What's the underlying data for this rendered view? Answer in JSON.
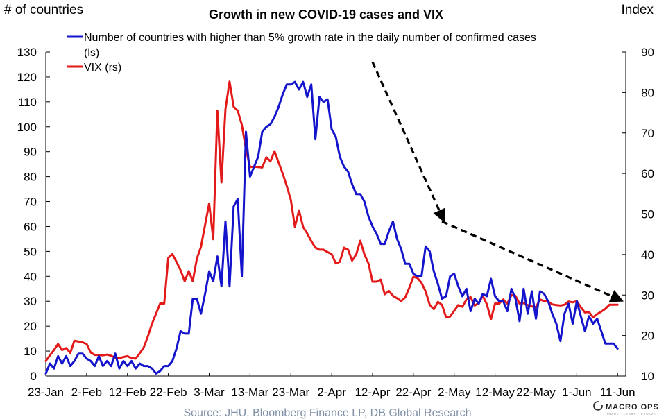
{
  "chart_data": {
    "type": "line",
    "title": "Growth in new COVID-19 cases and VIX",
    "ylabel_left": "# of countries",
    "ylabel_right": "Index",
    "ylim_left": [
      0,
      130
    ],
    "ylim_right": [
      10,
      90
    ],
    "yticks_left": [
      0,
      10,
      20,
      30,
      40,
      50,
      60,
      70,
      80,
      90,
      100,
      110,
      120,
      130
    ],
    "yticks_right": [
      10,
      20,
      30,
      40,
      50,
      60,
      70,
      80,
      90
    ],
    "x_range_days": [
      0,
      142
    ],
    "xtick_days": [
      0,
      10,
      20,
      30,
      40,
      50,
      60,
      70,
      80,
      90,
      100,
      110,
      120,
      130,
      140
    ],
    "xtick_labels": [
      "23-Jan",
      "2-Feb",
      "12-Feb",
      "22-Feb",
      "3-Mar",
      "13-Mar",
      "23-Mar",
      "2-Apr",
      "12-Apr",
      "22-Apr",
      "2-May",
      "12-May",
      "22-May",
      "1-Jun",
      "11-Jun"
    ],
    "legend": {
      "entry1_line1": "Number of countries with higher than 5% growth rate in the daily number of confirmed cases",
      "entry1_line2": "(ls)",
      "entry2": "VIX (rs)"
    },
    "series": [
      {
        "name": "Number of countries with higher than 5% growth rate in the daily number of confirmed cases (ls)",
        "axis": "left",
        "color": "#1414cc",
        "points": [
          [
            0,
            1
          ],
          [
            1,
            5
          ],
          [
            2,
            3
          ],
          [
            3,
            8
          ],
          [
            4,
            5
          ],
          [
            5,
            8
          ],
          [
            6,
            4
          ],
          [
            7,
            6
          ],
          [
            8,
            9
          ],
          [
            9,
            9
          ],
          [
            10,
            7
          ],
          [
            11,
            6
          ],
          [
            12,
            4
          ],
          [
            13,
            8
          ],
          [
            14,
            4
          ],
          [
            15,
            6
          ],
          [
            16,
            4
          ],
          [
            17,
            9
          ],
          [
            18,
            3
          ],
          [
            19,
            6
          ],
          [
            20,
            4
          ],
          [
            21,
            6
          ],
          [
            22,
            3
          ],
          [
            23,
            5
          ],
          [
            24,
            4
          ],
          [
            25,
            4
          ],
          [
            26,
            3
          ],
          [
            27,
            1
          ],
          [
            28,
            2
          ],
          [
            29,
            4
          ],
          [
            30,
            4
          ],
          [
            31,
            6
          ],
          [
            32,
            11
          ],
          [
            33,
            18
          ],
          [
            34,
            17
          ],
          [
            35,
            17
          ],
          [
            36,
            31
          ],
          [
            37,
            31
          ],
          [
            38,
            25
          ],
          [
            39,
            33
          ],
          [
            40,
            42
          ],
          [
            41,
            38
          ],
          [
            42,
            48
          ],
          [
            43,
            36
          ],
          [
            44,
            62
          ],
          [
            45,
            36
          ],
          [
            46,
            68
          ],
          [
            47,
            71
          ],
          [
            48,
            40
          ],
          [
            49,
            98
          ],
          [
            50,
            80
          ],
          [
            51,
            84
          ],
          [
            52,
            88
          ],
          [
            53,
            98
          ],
          [
            54,
            100
          ],
          [
            55,
            101
          ],
          [
            56,
            104
          ],
          [
            57,
            108
          ],
          [
            58,
            113
          ],
          [
            59,
            117
          ],
          [
            60,
            117
          ],
          [
            61,
            118
          ],
          [
            62,
            115
          ],
          [
            63,
            118
          ],
          [
            64,
            112
          ],
          [
            65,
            117
          ],
          [
            66,
            95
          ],
          [
            67,
            112
          ],
          [
            68,
            110
          ],
          [
            69,
            111
          ],
          [
            70,
            99
          ],
          [
            71,
            96
          ],
          [
            72,
            88
          ],
          [
            73,
            84
          ],
          [
            74,
            82
          ],
          [
            75,
            77
          ],
          [
            76,
            73
          ],
          [
            77,
            73
          ],
          [
            78,
            70
          ],
          [
            79,
            64
          ],
          [
            80,
            60
          ],
          [
            81,
            57
          ],
          [
            82,
            53
          ],
          [
            83,
            53
          ],
          [
            84,
            58
          ],
          [
            85,
            62
          ],
          [
            86,
            55
          ],
          [
            87,
            51
          ],
          [
            88,
            45
          ],
          [
            89,
            45
          ],
          [
            90,
            41
          ],
          [
            91,
            40
          ],
          [
            92,
            40
          ],
          [
            93,
            52
          ],
          [
            94,
            50
          ],
          [
            95,
            42
          ],
          [
            96,
            37
          ],
          [
            97,
            31
          ],
          [
            98,
            32
          ],
          [
            99,
            40
          ],
          [
            100,
            41
          ],
          [
            101,
            36
          ],
          [
            102,
            32
          ],
          [
            103,
            35
          ],
          [
            104,
            26
          ],
          [
            105,
            31
          ],
          [
            106,
            29
          ],
          [
            107,
            33
          ],
          [
            108,
            32
          ],
          [
            109,
            39
          ],
          [
            110,
            32
          ],
          [
            111,
            30
          ],
          [
            112,
            30
          ],
          [
            113,
            26
          ],
          [
            114,
            35
          ],
          [
            115,
            31
          ],
          [
            116,
            22
          ],
          [
            117,
            35
          ],
          [
            118,
            25
          ],
          [
            119,
            34
          ],
          [
            120,
            23
          ],
          [
            121,
            34
          ],
          [
            122,
            33
          ],
          [
            123,
            30
          ],
          [
            124,
            25
          ],
          [
            125,
            21
          ],
          [
            126,
            14
          ],
          [
            127,
            25
          ],
          [
            128,
            29
          ],
          [
            129,
            21
          ],
          [
            130,
            30
          ],
          [
            131,
            24
          ],
          [
            132,
            18
          ],
          [
            133,
            24
          ],
          [
            134,
            21
          ],
          [
            135,
            23
          ],
          [
            136,
            18
          ],
          [
            137,
            13
          ],
          [
            138,
            13
          ],
          [
            139,
            13
          ],
          [
            140,
            11
          ]
        ]
      },
      {
        "name": "VIX (rs)",
        "axis": "right",
        "color": "#e41a1a",
        "points": [
          [
            0,
            13.7
          ],
          [
            1,
            15.1
          ],
          [
            2,
            16.4
          ],
          [
            3,
            17.9
          ],
          [
            4,
            16.4
          ],
          [
            5,
            16.9
          ],
          [
            6,
            15.7
          ],
          [
            7,
            18.7
          ],
          [
            8,
            18.5
          ],
          [
            9,
            18.3
          ],
          [
            10,
            17.9
          ],
          [
            11,
            15.8
          ],
          [
            12,
            15.2
          ],
          [
            13,
            15.2
          ],
          [
            14,
            15.1
          ],
          [
            15,
            15.3
          ],
          [
            16,
            15
          ],
          [
            17,
            14.5
          ],
          [
            18,
            14.4
          ],
          [
            19,
            14.7
          ],
          [
            20,
            14.9
          ],
          [
            21,
            14.4
          ],
          [
            22,
            14.3
          ],
          [
            23,
            15.6
          ],
          [
            24,
            17.1
          ],
          [
            25,
            19.8
          ],
          [
            26,
            22.9
          ],
          [
            27,
            25.4
          ],
          [
            28,
            27.9
          ],
          [
            29,
            27.9
          ],
          [
            30,
            39.2
          ],
          [
            31,
            40.1
          ],
          [
            32,
            38.2
          ],
          [
            33,
            36.1
          ],
          [
            34,
            33.4
          ],
          [
            35,
            35.9
          ],
          [
            36,
            33.4
          ],
          [
            37,
            39
          ],
          [
            38,
            41.9
          ],
          [
            39,
            47.3
          ],
          [
            40,
            52.6
          ],
          [
            41,
            43.8
          ],
          [
            42,
            75.5
          ],
          [
            43,
            57.8
          ],
          [
            44,
            75.9
          ],
          [
            45,
            82.7
          ],
          [
            46,
            76.5
          ],
          [
            47,
            75.5
          ],
          [
            48,
            72
          ],
          [
            49,
            66
          ],
          [
            50,
            61.6
          ],
          [
            51,
            61.7
          ],
          [
            52,
            61.6
          ],
          [
            53,
            61.5
          ],
          [
            54,
            64
          ],
          [
            55,
            63
          ],
          [
            56,
            65.5
          ],
          [
            57,
            62.7
          ],
          [
            58,
            60
          ],
          [
            59,
            56.9
          ],
          [
            60,
            53.5
          ],
          [
            61,
            46.8
          ],
          [
            62,
            50.9
          ],
          [
            63,
            46.8
          ],
          [
            64,
            45.2
          ],
          [
            65,
            43.3
          ],
          [
            66,
            41.7
          ],
          [
            67,
            41.2
          ],
          [
            68,
            41.2
          ],
          [
            69,
            40.6
          ],
          [
            70,
            40.1
          ],
          [
            71,
            37.8
          ],
          [
            72,
            38.2
          ],
          [
            73,
            41.7
          ],
          [
            74,
            41.2
          ],
          [
            75,
            38.5
          ],
          [
            76,
            40
          ],
          [
            77,
            43.4
          ],
          [
            78,
            40.1
          ],
          [
            79,
            37.8
          ],
          [
            80,
            33.3
          ],
          [
            81,
            33.3
          ],
          [
            82,
            33.8
          ],
          [
            83,
            30.2
          ],
          [
            84,
            31
          ],
          [
            85,
            29.8
          ],
          [
            86,
            29.2
          ],
          [
            87,
            28.5
          ],
          [
            88,
            29.4
          ],
          [
            89,
            31.8
          ],
          [
            90,
            34.5
          ],
          [
            91,
            34.2
          ],
          [
            92,
            33
          ],
          [
            93,
            30.9
          ],
          [
            94,
            27.6
          ],
          [
            95,
            26.5
          ],
          [
            96,
            28.3
          ],
          [
            97,
            27.6
          ],
          [
            98,
            24.5
          ],
          [
            99,
            24.7
          ],
          [
            100,
            26.1
          ],
          [
            101,
            27.5
          ],
          [
            102,
            27.1
          ],
          [
            103,
            28.9
          ],
          [
            104,
            29.5
          ],
          [
            105,
            27.4
          ],
          [
            106,
            28
          ],
          [
            107,
            29.8
          ],
          [
            108,
            27.7
          ],
          [
            109,
            24
          ],
          [
            110,
            27.9
          ],
          [
            111,
            27.9
          ],
          [
            112,
            28.9
          ],
          [
            113,
            27.9
          ],
          [
            114,
            30
          ],
          [
            115,
            29.8
          ],
          [
            116,
            27.9
          ],
          [
            117,
            28
          ],
          [
            118,
            27.5
          ],
          [
            119,
            27.2
          ],
          [
            120,
            27
          ],
          [
            121,
            28.9
          ],
          [
            122,
            28.5
          ],
          [
            123,
            28.4
          ],
          [
            124,
            27.7
          ],
          [
            125,
            27.5
          ],
          [
            126,
            27.4
          ],
          [
            127,
            27.6
          ],
          [
            128,
            28.4
          ],
          [
            129,
            28.2
          ],
          [
            130,
            28.5
          ],
          [
            131,
            27
          ],
          [
            132,
            25.7
          ],
          [
            133,
            25.8
          ],
          [
            134,
            24.5
          ],
          [
            135,
            25.3
          ],
          [
            136,
            25.9
          ],
          [
            137,
            26.6
          ],
          [
            138,
            27.6
          ],
          [
            139,
            27.6
          ],
          [
            140,
            27.6
          ]
        ]
      }
    ],
    "annotations": {
      "arrow_color": "#000000",
      "arrow_style": "dashed",
      "arrow1": {
        "from": [
          80,
          126
        ],
        "to": [
          97,
          64
        ],
        "axis": "left",
        "note": "downward trend arrow"
      },
      "arrow2": {
        "from": [
          97,
          62
        ],
        "to": [
          140,
          31
        ],
        "axis": "left",
        "note": "downward trend arrow"
      }
    },
    "grid": false,
    "legend_position": "top-left"
  },
  "source": "Source: JHU, Bloomberg Finance LP, DB Global Research",
  "brand": {
    "name": "MACRO OPS",
    "tagline": "TRADE · LEARN · EVOLVE"
  }
}
